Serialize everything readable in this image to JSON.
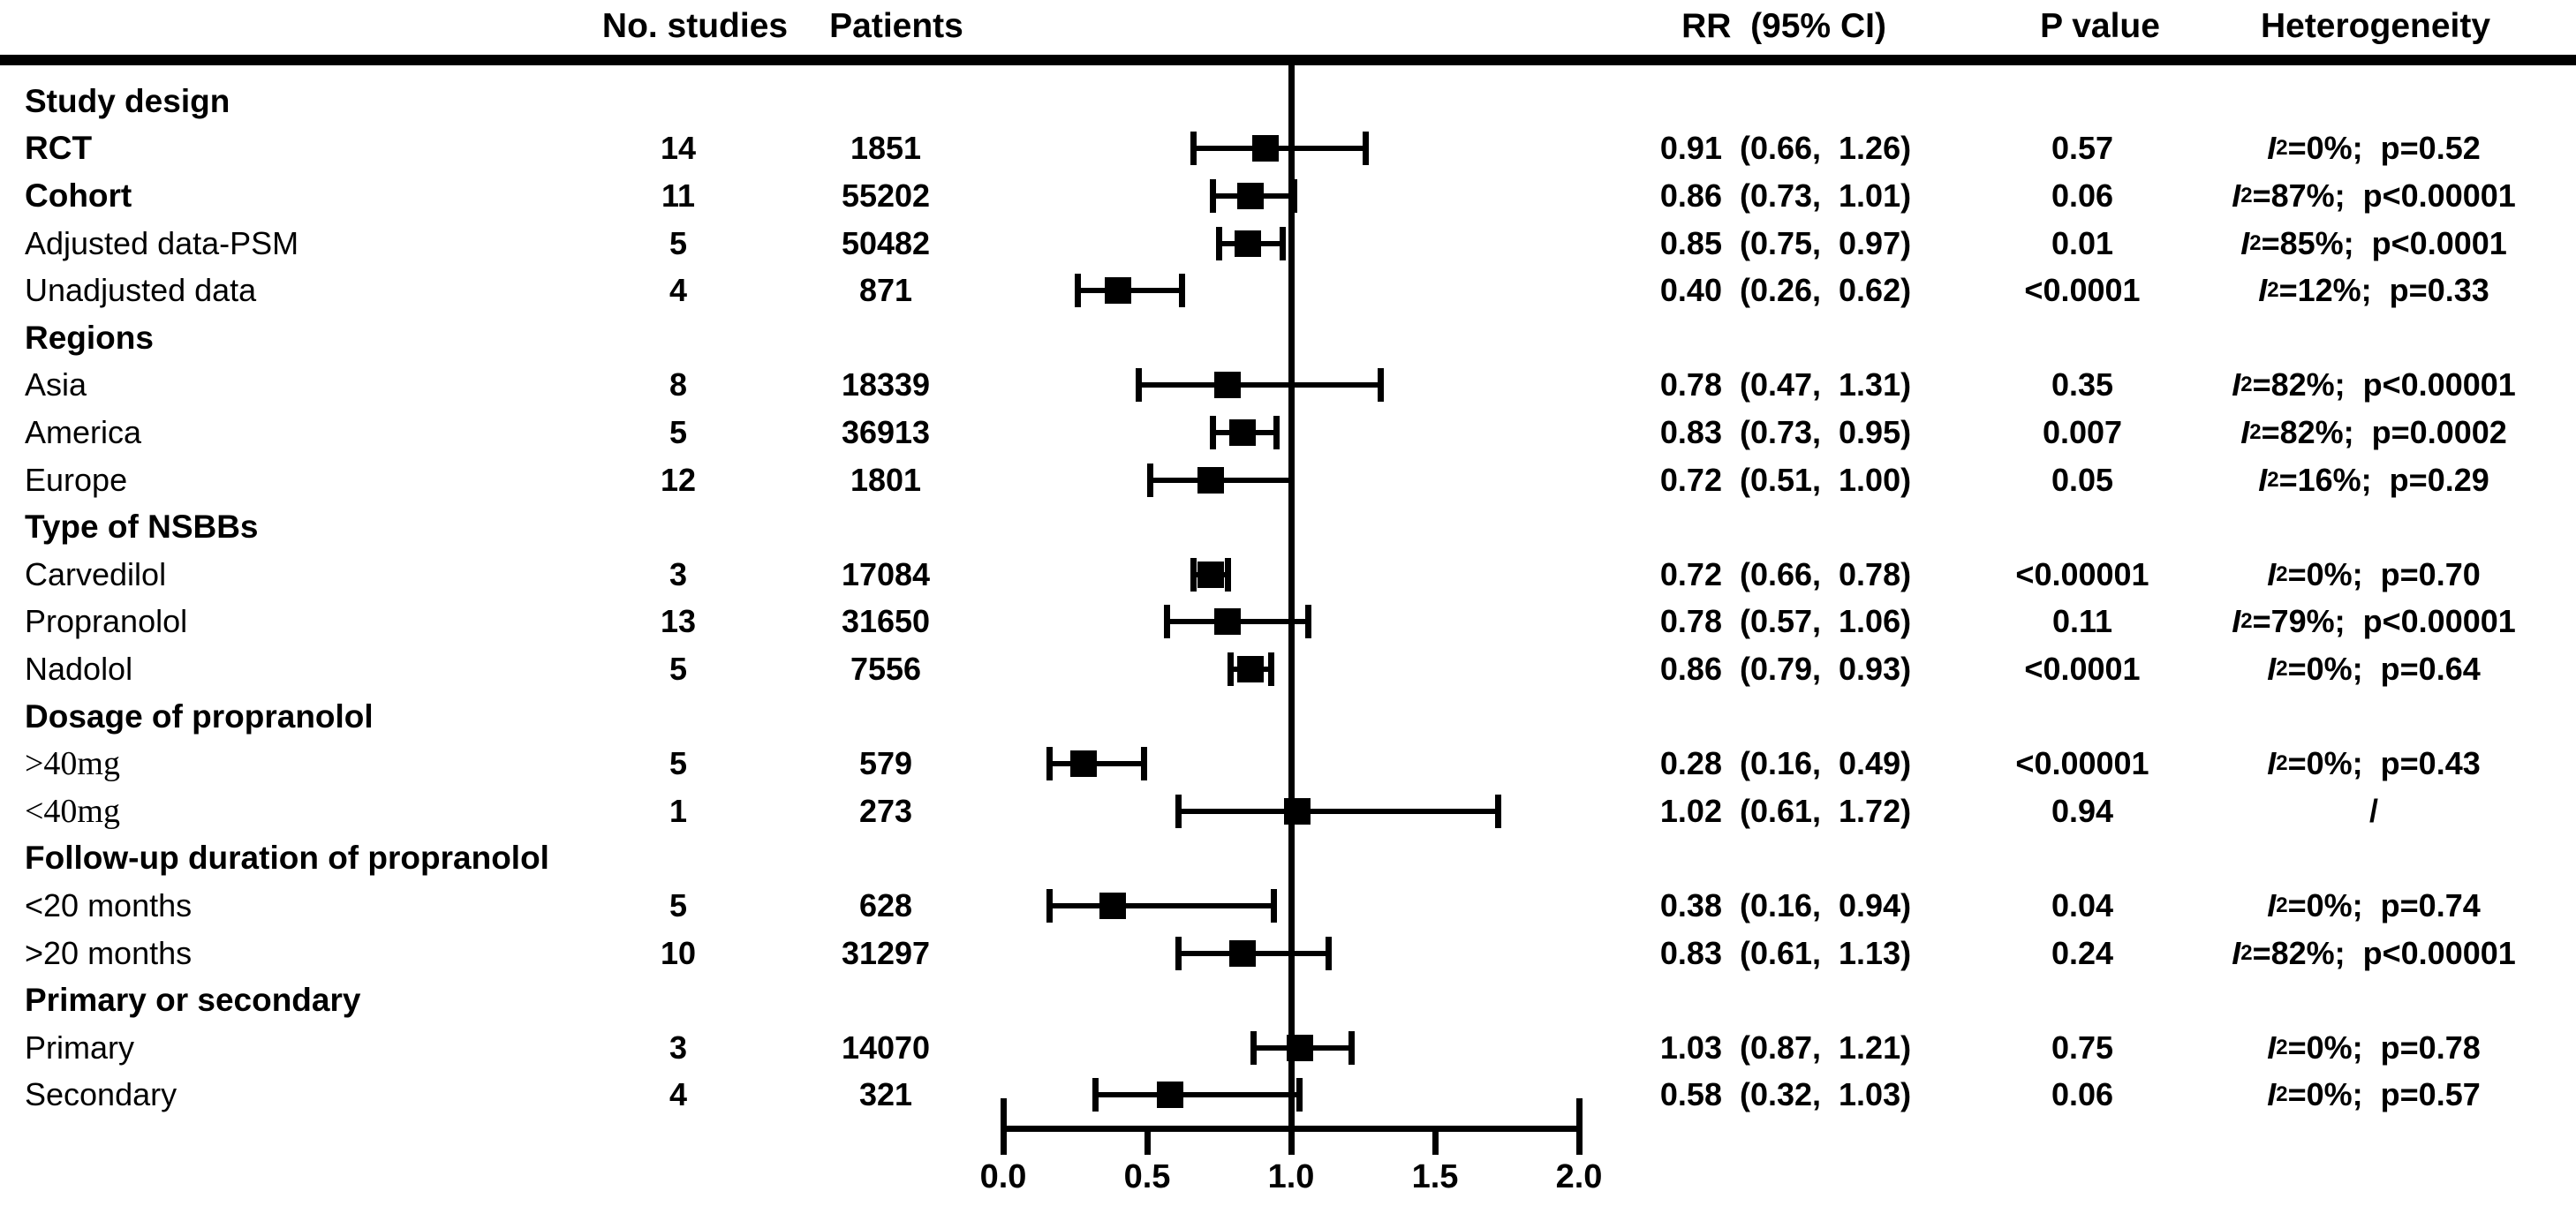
{
  "header": {
    "no_studies": "No. studies",
    "patients": "Patients",
    "rr_ci": "RR  (95% CI)",
    "p_value": "P value",
    "heterogeneity": "Heterogeneity"
  },
  "axis": {
    "tick_labels": [
      "0.0",
      "0.5",
      "1.0",
      "1.5",
      "2.0"
    ],
    "tick_values": [
      0,
      0.5,
      1.0,
      1.5,
      2.0
    ],
    "min": 0,
    "max": 2,
    "ref_line": 1.0
  },
  "colors": {
    "ink": "#000000",
    "background": "#ffffff"
  },
  "chart_data": {
    "type": "forest",
    "title": "",
    "xlabel": "",
    "x_axis": {
      "min": 0,
      "max": 2,
      "ticks": [
        0,
        0.5,
        1.0,
        1.5,
        2.0
      ],
      "ref_line": 1.0,
      "grid": false
    },
    "effect_measure": "RR",
    "groups": [
      {
        "group": "Study design",
        "items": [
          {
            "label": "RCT",
            "label_style": "bold",
            "n_studies": 14,
            "patients": 1851,
            "rr": 0.91,
            "ci_low": 0.66,
            "ci_high": 1.26,
            "p": "0.57",
            "het": "I²=0%;  p=0.52"
          },
          {
            "label": "Cohort",
            "label_style": "bold",
            "n_studies": 11,
            "patients": 55202,
            "rr": 0.86,
            "ci_low": 0.73,
            "ci_high": 1.01,
            "p": "0.06",
            "het": "I²=87%;  p<0.00001"
          },
          {
            "label": "Adjusted data-PSM",
            "label_style": "regular",
            "n_studies": 5,
            "patients": 50482,
            "rr": 0.85,
            "ci_low": 0.75,
            "ci_high": 0.97,
            "p": "0.01",
            "het": "I²=85%;  p<0.0001"
          },
          {
            "label": "Unadjusted data",
            "label_style": "regular",
            "n_studies": 4,
            "patients": 871,
            "rr": 0.4,
            "ci_low": 0.26,
            "ci_high": 0.62,
            "p": "<0.0001",
            "het": "I²=12%;  p=0.33"
          }
        ]
      },
      {
        "group": "Regions",
        "items": [
          {
            "label": "Asia",
            "label_style": "regular",
            "n_studies": 8,
            "patients": 18339,
            "rr": 0.78,
            "ci_low": 0.47,
            "ci_high": 1.31,
            "p": "0.35",
            "het": "I²=82%;  p<0.00001"
          },
          {
            "label": "America",
            "label_style": "regular",
            "n_studies": 5,
            "patients": 36913,
            "rr": 0.83,
            "ci_low": 0.73,
            "ci_high": 0.95,
            "p": "0.007",
            "het": "I²=82%;  p=0.0002"
          },
          {
            "label": "Europe",
            "label_style": "regular",
            "n_studies": 12,
            "patients": 1801,
            "rr": 0.72,
            "ci_low": 0.51,
            "ci_high": 1.0,
            "p": "0.05",
            "het": "I²=16%;  p=0.29"
          }
        ]
      },
      {
        "group": "Type of NSBBs",
        "items": [
          {
            "label": "Carvedilol",
            "label_style": "regular",
            "n_studies": 3,
            "patients": 17084,
            "rr": 0.72,
            "ci_low": 0.66,
            "ci_high": 0.78,
            "p": "<0.00001",
            "het": "I²=0%;  p=0.70"
          },
          {
            "label": "Propranolol",
            "label_style": "regular",
            "n_studies": 13,
            "patients": 31650,
            "rr": 0.78,
            "ci_low": 0.57,
            "ci_high": 1.06,
            "p": "0.11",
            "het": "I²=79%;  p<0.00001"
          },
          {
            "label": "Nadolol",
            "label_style": "regular",
            "n_studies": 5,
            "patients": 7556,
            "rr": 0.86,
            "ci_low": 0.79,
            "ci_high": 0.93,
            "p": "<0.0001",
            "het": "I²=0%;  p=0.64"
          }
        ]
      },
      {
        "group": "Dosage of propranolol",
        "items": [
          {
            "label": ">40mg",
            "label_style": "serif",
            "n_studies": 5,
            "patients": 579,
            "rr": 0.28,
            "ci_low": 0.16,
            "ci_high": 0.49,
            "p": "<0.00001",
            "het": "I²=0%;  p=0.43"
          },
          {
            "label": "<40mg",
            "label_style": "serif",
            "n_studies": 1,
            "patients": 273,
            "rr": 1.02,
            "ci_low": 0.61,
            "ci_high": 1.72,
            "p": "0.94",
            "het": "/"
          }
        ]
      },
      {
        "group": "Follow-up duration of propranolol",
        "items": [
          {
            "label": "<20 months",
            "label_style": "regular",
            "n_studies": 5,
            "patients": 628,
            "rr": 0.38,
            "ci_low": 0.16,
            "ci_high": 0.94,
            "p": "0.04",
            "het": "I²=0%;  p=0.74"
          },
          {
            "label": ">20 months",
            "label_style": "regular",
            "n_studies": 10,
            "patients": 31297,
            "rr": 0.83,
            "ci_low": 0.61,
            "ci_high": 1.13,
            "p": "0.24",
            "het": "I²=82%;  p<0.00001"
          }
        ]
      },
      {
        "group": "Primary or secondary",
        "items": [
          {
            "label": "Primary",
            "label_style": "regular",
            "n_studies": 3,
            "patients": 14070,
            "rr": 1.03,
            "ci_low": 0.87,
            "ci_high": 1.21,
            "p": "0.75",
            "het": "I²=0%;  p=0.78"
          },
          {
            "label": "Secondary",
            "label_style": "regular",
            "n_studies": 4,
            "patients": 321,
            "rr": 0.58,
            "ci_low": 0.32,
            "ci_high": 1.03,
            "p": "0.06",
            "het": "I²=0%;  p=0.57"
          }
        ]
      }
    ]
  }
}
